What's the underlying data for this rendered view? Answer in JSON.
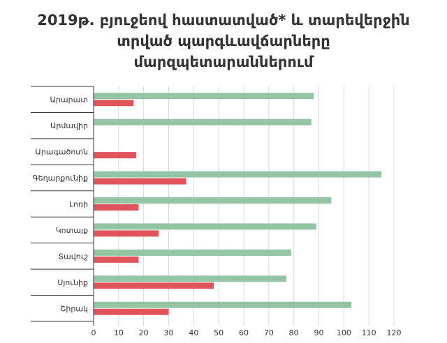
{
  "title_lines": [
    "2019թ. բյուջեով հաստատված* և տարեվերջին",
    "տրված պարգևավճարները",
    "մարզպետարաններում"
  ],
  "chart_data": {
    "type": "bar",
    "orientation": "horizontal",
    "title": "2019թ. բյուջեով հաստատված* և տարեվերջին տրված պարգևավճարները մարզպետարաններում",
    "categories": [
      "Արարատ",
      "Արմավիր",
      "Արագածոտն",
      "Գեղարքունիք",
      "Լոռի",
      "Կոտայք",
      "Տավուշ",
      "Սյունիք",
      "Շիրակ"
    ],
    "series": [
      {
        "color": "#93c4a3",
        "values": [
          88,
          87,
          0,
          115,
          95,
          89,
          79,
          77,
          103
        ]
      },
      {
        "color": "#e0555c",
        "values": [
          16,
          0,
          17,
          37,
          18,
          26,
          18,
          48,
          30
        ]
      }
    ],
    "xlim": [
      0,
      120
    ],
    "xticks": [
      0,
      10,
      20,
      30,
      40,
      50,
      60,
      70,
      80,
      90,
      100,
      110,
      120
    ],
    "grid": true,
    "legend": "none"
  }
}
